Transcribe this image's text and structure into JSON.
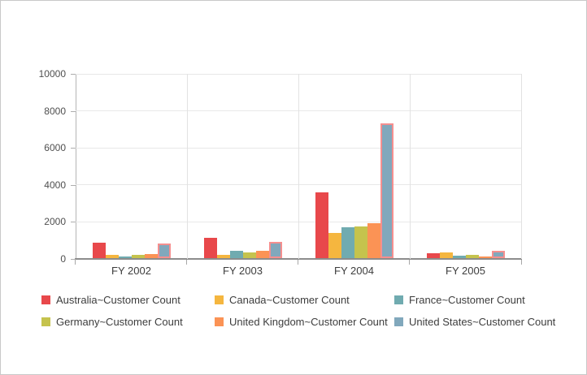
{
  "window": {
    "background": "#ffffff",
    "border_color": "#c9c9c9"
  },
  "chart_data": {
    "type": "bar",
    "title": "",
    "xlabel": "",
    "ylabel": "",
    "categories": [
      "FY 2002",
      "FY 2003",
      "FY 2004",
      "FY 2005"
    ],
    "series": [
      {
        "name": "Australia~Customer Count",
        "color": "#e8484b",
        "values": [
          850,
          1120,
          3550,
          280
        ]
      },
      {
        "name": "Canada~Customer Count",
        "color": "#f5b63f",
        "values": [
          180,
          180,
          1360,
          330
        ]
      },
      {
        "name": "France~Customer Count",
        "color": "#70abb0",
        "values": [
          100,
          390,
          1680,
          130
        ]
      },
      {
        "name": "Germany~Customer Count",
        "color": "#c5c34d",
        "values": [
          180,
          320,
          1710,
          175
        ]
      },
      {
        "name": "United Kingdom~Customer Count",
        "color": "#fb9355",
        "values": [
          200,
          400,
          1880,
          100
        ]
      },
      {
        "name": "United States~Customer Count",
        "color": "#81a8bc",
        "border_color": "#f58f8f",
        "values": [
          780,
          900,
          7280,
          410
        ]
      }
    ],
    "y_ticks": [
      0,
      2000,
      4000,
      6000,
      8000,
      10000
    ],
    "y_tick_labels": [
      "0",
      "2000",
      "4000",
      "6000",
      "8000",
      "10000"
    ],
    "ylim": [
      0,
      10000
    ],
    "grid": true,
    "legend_position": "bottom",
    "highlighted_series": "United States~Customer Count"
  },
  "legend": {
    "rows": 2,
    "columns": 3,
    "items": [
      "Australia~Customer Count",
      "Canada~Customer Count",
      "France~Customer Count",
      "Germany~Customer Count",
      "United Kingdom~Customer Count",
      "United States~Customer Count"
    ]
  },
  "colors": {
    "axis_line": "#8c8c8c",
    "y_axis_line": "#b5b5b5",
    "gridline": "#e8e8e8",
    "axis_text": "#4f4f4f",
    "label_text": "#3d3d3d"
  }
}
